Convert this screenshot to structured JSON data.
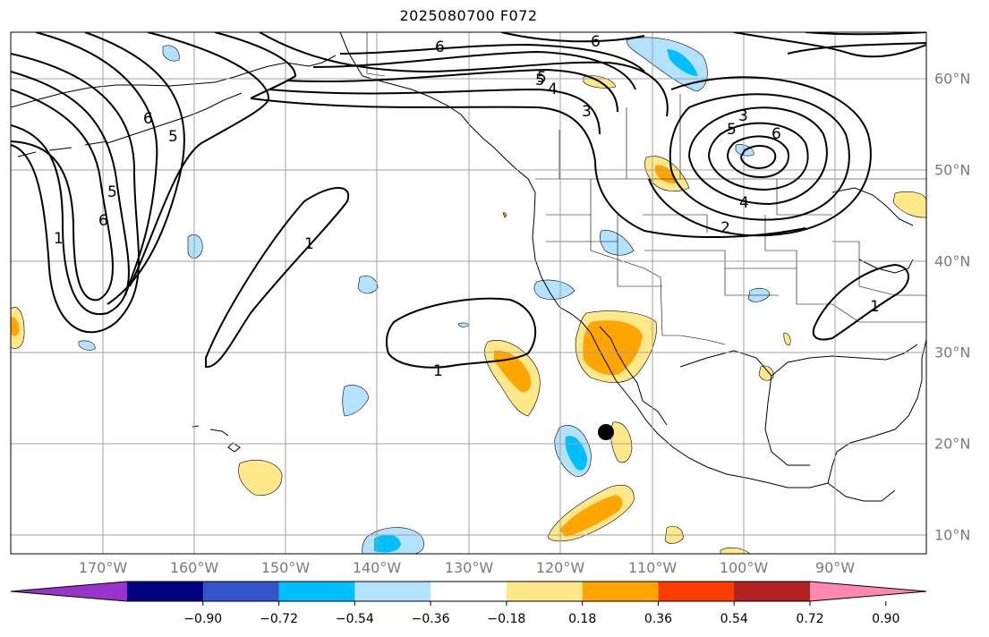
{
  "title": "2025080700 F072",
  "map": {
    "longitude_labels": [
      "170°W",
      "160°W",
      "150°W",
      "140°W",
      "130°W",
      "120°W",
      "110°W",
      "100°W",
      "90°W"
    ],
    "latitude_labels": [
      "60°N",
      "50°N",
      "40°N",
      "30°N",
      "20°N",
      "10°N"
    ],
    "contour_labels": [
      "6",
      "5",
      "5",
      "6",
      "1",
      "5",
      "6",
      "1",
      "1",
      "6",
      "5",
      "4",
      "3",
      "3",
      "5",
      "6",
      "4",
      "2",
      "1"
    ],
    "point_marker": "filled-black-dot"
  },
  "colorbar": {
    "tick_labels": [
      "−0.90",
      "−0.72",
      "−0.54",
      "−0.36",
      "−0.18",
      "0.18",
      "0.36",
      "0.54",
      "0.72",
      "0.90"
    ],
    "colors": [
      "#9933cc",
      "#000080",
      "#3355cc",
      "#00bfff",
      "#b3e2ff",
      "#ffffff",
      "#ffe88a",
      "#ffa500",
      "#ff3c00",
      "#b22222",
      "#ff88b0"
    ]
  },
  "colors": {
    "grid": "#a0a0a0",
    "contour": "#000000",
    "coast": "#000000"
  }
}
